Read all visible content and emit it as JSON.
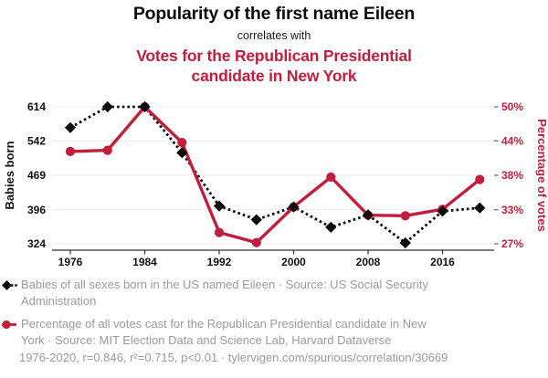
{
  "header": {
    "title": "Popularity of the first name Eileen",
    "connector": "correlates with",
    "subtitle_lines": [
      "Votes for the Republican Presidential",
      "candidate in New York"
    ]
  },
  "colors": {
    "accent_red": "#c01e3c",
    "series_black": "#0d0d0d",
    "muted_text_gray": "#9a9a9a",
    "gridline_gray": "#ececec"
  },
  "chart_data": {
    "type": "line",
    "title": "Popularity of the first name Eileen correlates with Votes for the Republican Presidential candidate in New York",
    "x": [
      1976,
      1980,
      1984,
      1988,
      1992,
      1996,
      2000,
      2004,
      2008,
      2012,
      2016,
      2020
    ],
    "x_tick_labels": [
      1976,
      1984,
      1992,
      2000,
      2008,
      2016
    ],
    "left_axis": {
      "label": "Babies born",
      "ticks": [
        614,
        542,
        469,
        396,
        324
      ]
    },
    "right_axis": {
      "label": "Percentage of votes",
      "ticks": [
        "50%",
        "44%",
        "38%",
        "33%",
        "27%"
      ],
      "tick_values": [
        50,
        44,
        38,
        33,
        27
      ]
    },
    "series": [
      {
        "name": "Babies of all sexes born in the US named Eileen",
        "axis": "left",
        "color": "#0d0d0d",
        "marker": "diamond",
        "line": "dashed",
        "values": [
          570,
          614,
          614,
          517,
          404,
          375,
          402,
          359,
          385,
          326,
          393,
          400
        ]
      },
      {
        "name": "Percentage of all votes cast for the Republican Presidential candidate in New York",
        "axis": "right",
        "color": "#c01e3c",
        "marker": "circle",
        "line": "solid",
        "values": [
          42.5,
          42.7,
          50.0,
          44.0,
          28.9,
          27.2,
          33.2,
          38.2,
          31.8,
          31.7,
          32.8,
          37.8
        ]
      }
    ],
    "legend_position": "bottom",
    "grid": "horizontal"
  },
  "legend": {
    "items": [
      {
        "marker": "black-diamond-dashed",
        "lines": [
          "Babies of all sexes born in the US named Eileen · Source: US Social Security",
          "Administration"
        ]
      },
      {
        "marker": "red-dot-solid",
        "lines": [
          "Percentage of all votes cast for the Republican Presidential candidate in New",
          "York · Source: MIT Election Data and Science Lab, Harvard Dataverse"
        ]
      }
    ]
  },
  "footer": {
    "text": "1976-2020, r=0.846, r²=0.715, p<0.01 · tylervigen.com/spurious/correlation/30669"
  }
}
